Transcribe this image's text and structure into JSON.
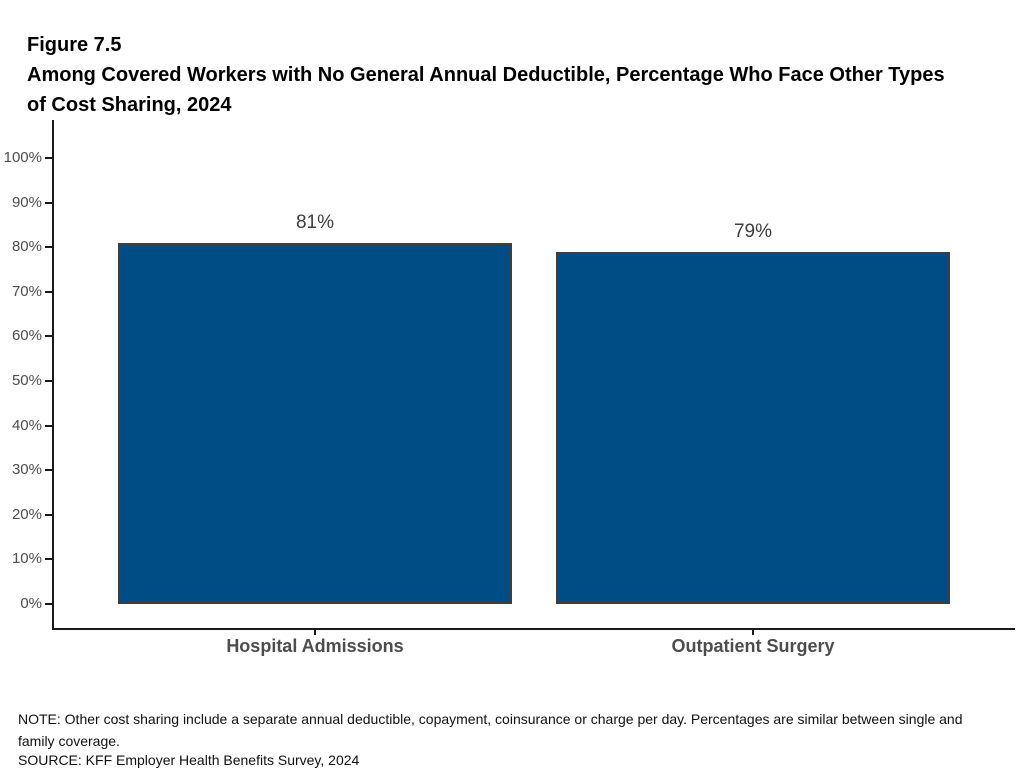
{
  "figure": {
    "label": "Figure 7.5",
    "title": "Among Covered Workers with No General Annual Deductible, Percentage Who Face Other Types of Cost Sharing, 2024",
    "title_line1": "Among Covered Workers with No General Annual Deductible, Percentage Who Face Other Types",
    "title_line2": "of Cost Sharing, 2024"
  },
  "chart_data": {
    "type": "bar",
    "title": "Among Covered Workers with No General Annual Deductible, Percentage Who Face Other Types of Cost Sharing, 2024",
    "categories": [
      "Hospital Admissions",
      "Outpatient Surgery"
    ],
    "values": [
      81,
      79
    ],
    "value_labels": [
      "81%",
      "79%"
    ],
    "xlabel": "",
    "ylabel": "",
    "ylim": [
      0,
      100
    ],
    "y_tick_step": 10,
    "y_tick_labels": [
      "0%",
      "10%",
      "20%",
      "30%",
      "40%",
      "50%",
      "60%",
      "70%",
      "80%",
      "90%",
      "100%"
    ],
    "grid": false,
    "legend": false,
    "bar_color": "#004C85",
    "bar_border_color": "#3E3E3E",
    "axis_color": "#1a1a1a",
    "tick_label_color": "#4d4d4d",
    "category_label_color": "#4d4d4d",
    "value_label_color": "#3d3d3d"
  },
  "notes": {
    "note_line1": "NOTE: Other cost sharing include a separate annual deductible, copayment, coinsurance or charge per day. Percentages are similar between single and",
    "note_line2": "family coverage.",
    "source": "SOURCE: KFF Employer Health Benefits Survey, 2024"
  }
}
